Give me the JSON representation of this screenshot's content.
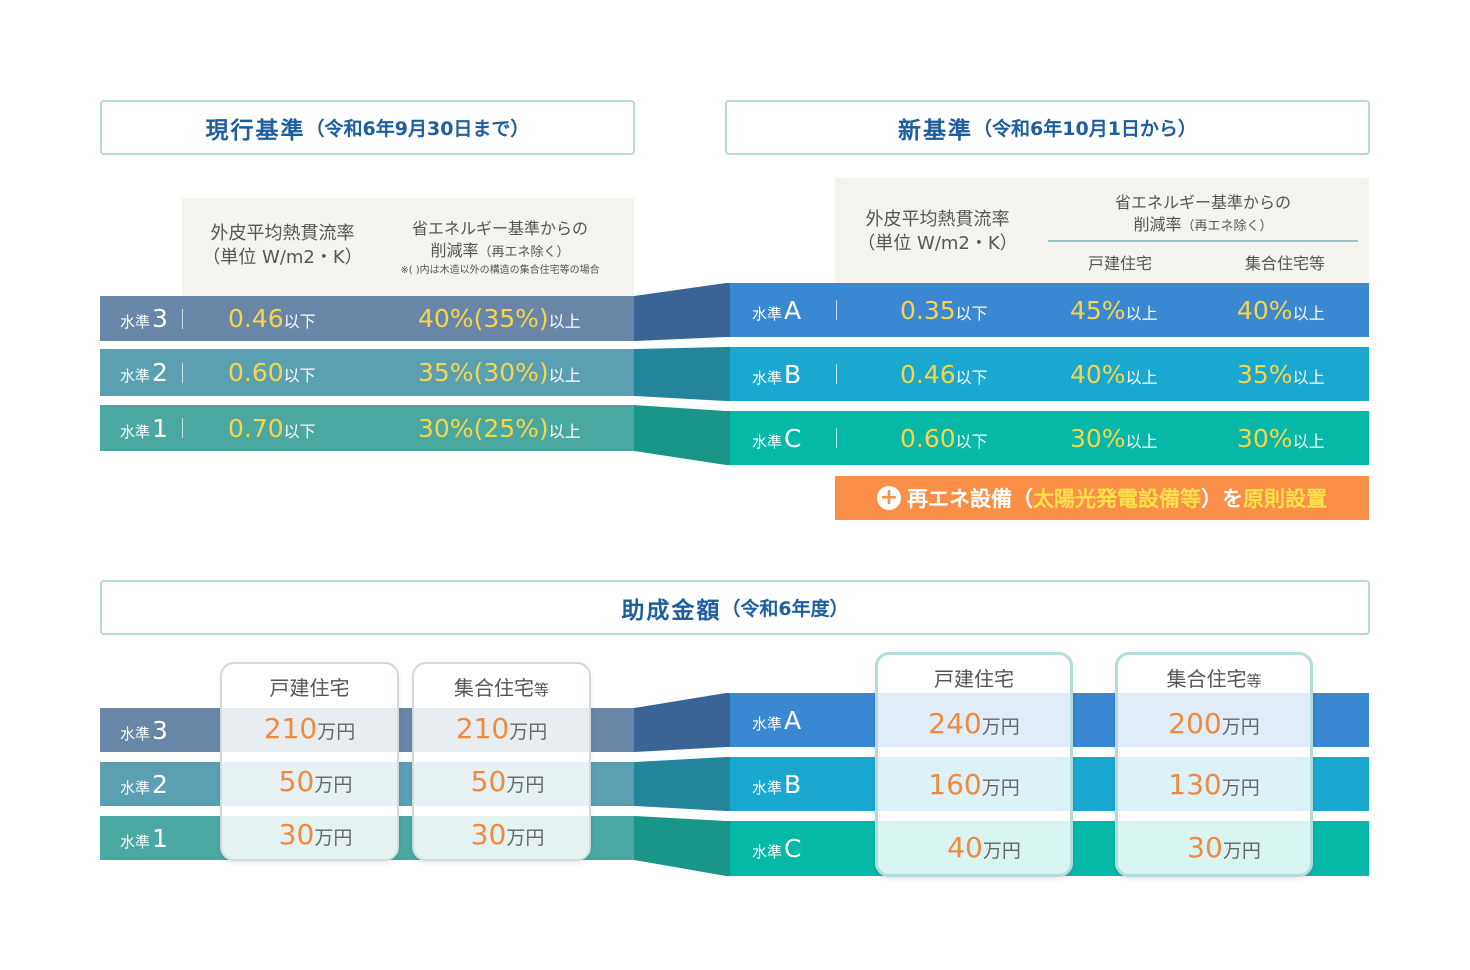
{
  "current": {
    "title": "現行基準",
    "subtitle": "（令和6年9月30日まで）",
    "col1": [
      "外皮平均熱貫流率",
      "（単位 W/m2・K）"
    ],
    "col2": [
      "省エネルギー基準からの",
      "削減率",
      "（再エネ除く）"
    ],
    "note": "※( )内は木造以外の構造の集合住宅等の場合",
    "prefix": "水準",
    "rows": [
      {
        "level": "3",
        "ua": "0.46",
        "ua_unit": "以下",
        "rate": "40%(35%)",
        "rate_unit": "以上"
      },
      {
        "level": "2",
        "ua": "0.60",
        "ua_unit": "以下",
        "rate": "35%(30%)",
        "rate_unit": "以上"
      },
      {
        "level": "1",
        "ua": "0.70",
        "ua_unit": "以下",
        "rate": "30%(25%)",
        "rate_unit": "以上"
      }
    ]
  },
  "new": {
    "title": "新基準",
    "subtitle": "（令和6年10月1日から）",
    "col1": [
      "外皮平均熱貫流率",
      "（単位 W/m2・K）"
    ],
    "col2": [
      "省エネルギー基準からの",
      "削減率",
      "（再エネ除く）"
    ],
    "sub1": "戸建住宅",
    "sub2": "集合住宅等",
    "prefix": "水準",
    "rows": [
      {
        "level": "A",
        "ua": "0.35",
        "ua_unit": "以下",
        "house": "45%",
        "apt": "40%",
        "unit": "以上"
      },
      {
        "level": "B",
        "ua": "0.46",
        "ua_unit": "以下",
        "house": "40%",
        "apt": "35%",
        "unit": "以上"
      },
      {
        "level": "C",
        "ua": "0.60",
        "ua_unit": "以下",
        "house": "30%",
        "apt": "30%",
        "unit": "以上"
      }
    ],
    "renew": {
      "a": "再エネ設備（",
      "b": "太陽光発電設備等",
      "c": "）を",
      "d": "原則設置"
    }
  },
  "subsidy": {
    "title": "助成金額",
    "subtitle": "（令和6年度）",
    "unit": "万円",
    "house": "戸建住宅",
    "apt_a": "集合住宅",
    "apt_b": "等",
    "left": [
      {
        "level": "3",
        "house": "210",
        "apt": "210"
      },
      {
        "level": "2",
        "house": "50",
        "apt": "50"
      },
      {
        "level": "1",
        "house": "30",
        "apt": "30"
      }
    ],
    "right": [
      {
        "level": "A",
        "house": "240",
        "apt": "200"
      },
      {
        "level": "B",
        "house": "160",
        "apt": "130"
      },
      {
        "level": "C",
        "house": "40",
        "apt": "30"
      }
    ]
  },
  "colors": {
    "l3": "#6887a8",
    "l2": "#5aa0b2",
    "l1": "#4aa8a0",
    "a": "#3a87d2",
    "b": "#1aa8d0",
    "c": "#05b8a8",
    "orange": "#fb8f48"
  }
}
